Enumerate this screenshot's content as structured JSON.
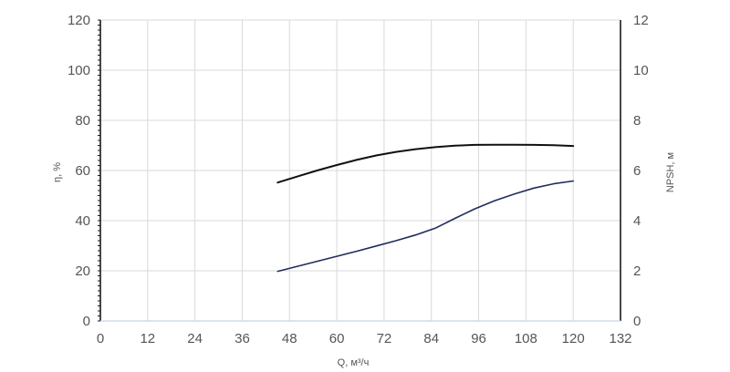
{
  "chart_data": {
    "type": "line",
    "title": "",
    "xlabel": "Q, м³/ч",
    "ylabel_left": "η, %",
    "ylabel_right": "NPSH, м",
    "xlim": [
      0,
      132
    ],
    "ylim_left": [
      0,
      120
    ],
    "ylim_right": [
      0,
      12
    ],
    "x_ticks": [
      "0",
      "12",
      "24",
      "36",
      "48",
      "60",
      "72",
      "84",
      "96",
      "108",
      "120",
      "132"
    ],
    "y_left_ticks": [
      "0",
      "20",
      "40",
      "60",
      "80",
      "100",
      "120"
    ],
    "y_right_ticks": [
      "0",
      "2",
      "4",
      "6",
      "8",
      "10",
      "12"
    ],
    "grid": true,
    "legend": "none",
    "series": [
      {
        "axis": "left",
        "color": "#111111",
        "x": [
          45,
          50,
          55,
          60,
          65,
          70,
          75,
          80,
          85,
          90,
          95,
          100,
          105,
          110,
          115,
          120
        ],
        "y": [
          55.2,
          57.6,
          60.0,
          62.2,
          64.2,
          66.0,
          67.4,
          68.5,
          69.3,
          69.9,
          70.2,
          70.3,
          70.3,
          70.2,
          70.1,
          69.8
        ]
      },
      {
        "axis": "right",
        "color": "#1f2d5c",
        "x": [
          45,
          50,
          55,
          60,
          65,
          70,
          75,
          80,
          85,
          90,
          95,
          100,
          105,
          110,
          115,
          120
        ],
        "y": [
          1.98,
          2.18,
          2.38,
          2.58,
          2.78,
          2.99,
          3.2,
          3.43,
          3.7,
          4.09,
          4.47,
          4.79,
          5.06,
          5.3,
          5.47,
          5.58
        ]
      }
    ]
  }
}
